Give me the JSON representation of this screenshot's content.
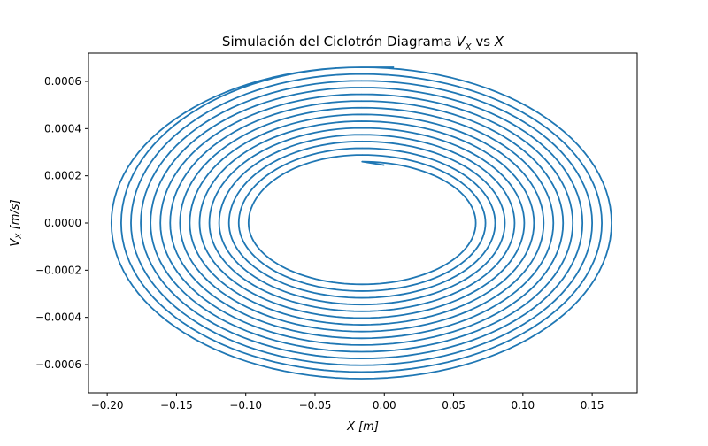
{
  "chart_data": {
    "type": "line",
    "title": "Simulación del Ciclotrón Diagrama V_X vs X",
    "title_main": "Simulación del Ciclotrón Diagrama ",
    "title_var_y": "V",
    "title_var_y_sub": "X",
    "title_vs": " vs ",
    "title_var_x": "X",
    "xlabel": "X [m]",
    "xlabel_var": "X",
    "xlabel_unit": "[m]",
    "ylabel": "V_X [m/s]",
    "ylabel_var": "V",
    "ylabel_sub": "X",
    "ylabel_unit": "[m/s]",
    "xlim": [
      -0.2135,
      0.1825
    ],
    "ylim": [
      -0.00072,
      0.00072
    ],
    "xticks": [
      -0.2,
      -0.15,
      -0.1,
      -0.05,
      0.0,
      0.05,
      0.1,
      0.15
    ],
    "xtick_labels": [
      "−0.20",
      "−0.15",
      "−0.10",
      "−0.05",
      "0.00",
      "0.05",
      "0.10",
      "0.15"
    ],
    "yticks": [
      -0.0006,
      -0.0004,
      -0.0002,
      0.0,
      0.0002,
      0.0004,
      0.0006
    ],
    "ytick_labels": [
      "−0.0006",
      "−0.0004",
      "−0.0002",
      "0.0000",
      "0.0002",
      "0.0004",
      "0.0006"
    ],
    "grid": false,
    "series_color": "#1f77b4",
    "spiral": {
      "start": [
        0.0,
        0.000245
      ],
      "end": [
        0.007,
        0.00066
      ],
      "revolutions": 15,
      "x_right_first": 0.066,
      "x_right_last": 0.164,
      "x_left_first": -0.098,
      "x_left_last": -0.197,
      "vx_top_first": 0.00026,
      "vx_top_last": 0.00066,
      "vx_bottom_first": -0.00026,
      "vx_bottom_last": -0.00066
    }
  }
}
